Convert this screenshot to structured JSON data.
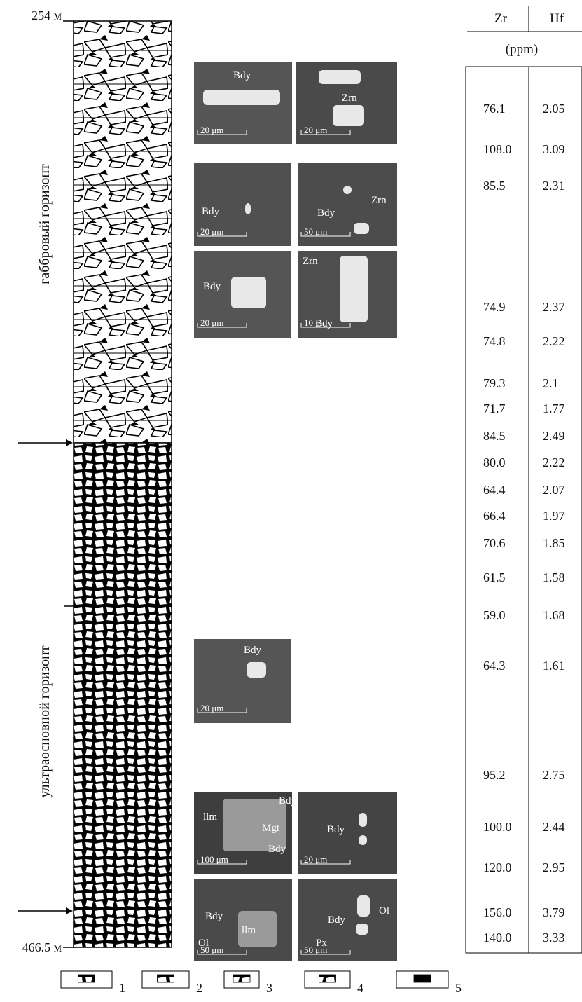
{
  "column": {
    "top_depth": "254 м",
    "bottom_depth": "466.5 м",
    "upper_horizon": "габбровый горизонт",
    "lower_horizon": "ультраосновной горизонт"
  },
  "images": [
    {
      "labels": [
        "Bdy"
      ],
      "scale": "20 μm"
    },
    {
      "labels": [
        "Zrn"
      ],
      "scale": "20 μm"
    },
    {
      "labels": [
        "Bdy"
      ],
      "scale": "20 μm"
    },
    {
      "labels": [
        "Bdy",
        "Zrn"
      ],
      "scale": "50 μm"
    },
    {
      "labels": [
        "Bdy"
      ],
      "scale": "20 μm"
    },
    {
      "labels": [
        "Zrn",
        "Bdy"
      ],
      "scale": "10 μm"
    },
    {
      "labels": [
        "Bdy"
      ],
      "scale": "20 μm"
    },
    {
      "labels": [
        "Bdy",
        "llm",
        "Mgt",
        "Bdy"
      ],
      "scale": "100 μm"
    },
    {
      "labels": [
        "Bdy"
      ],
      "scale": "20 μm"
    },
    {
      "labels": [
        "Bdy",
        "llm",
        "Ol"
      ],
      "scale": "50 μm"
    },
    {
      "labels": [
        "Bdy",
        "Ol",
        "Px"
      ],
      "scale": "50 μm"
    }
  ],
  "table": {
    "headers": [
      "Zr",
      "Hf"
    ],
    "unit": "(ppm)",
    "rows": [
      [
        "76.1",
        "2.05"
      ],
      [
        "108.0",
        "3.09"
      ],
      [
        "85.5",
        "2.31"
      ],
      [
        "74.9",
        "2.37"
      ],
      [
        "74.8",
        "2.22"
      ],
      [
        "79.3",
        "2.1"
      ],
      [
        "71.7",
        "1.77"
      ],
      [
        "84.5",
        "2.49"
      ],
      [
        "80.0",
        "2.22"
      ],
      [
        "64.4",
        "2.07"
      ],
      [
        "66.4",
        "1.97"
      ],
      [
        "70.6",
        "1.85"
      ],
      [
        "61.5",
        "1.58"
      ],
      [
        "59.0",
        "1.68"
      ],
      [
        "64.3",
        "1.61"
      ],
      [
        "95.2",
        "2.75"
      ],
      [
        "100.0",
        "2.44"
      ],
      [
        "120.0",
        "2.95"
      ],
      [
        "156.0",
        "3.79"
      ],
      [
        "140.0",
        "3.33"
      ]
    ]
  },
  "legend": [
    "1",
    "2",
    "3",
    "4",
    "5"
  ]
}
